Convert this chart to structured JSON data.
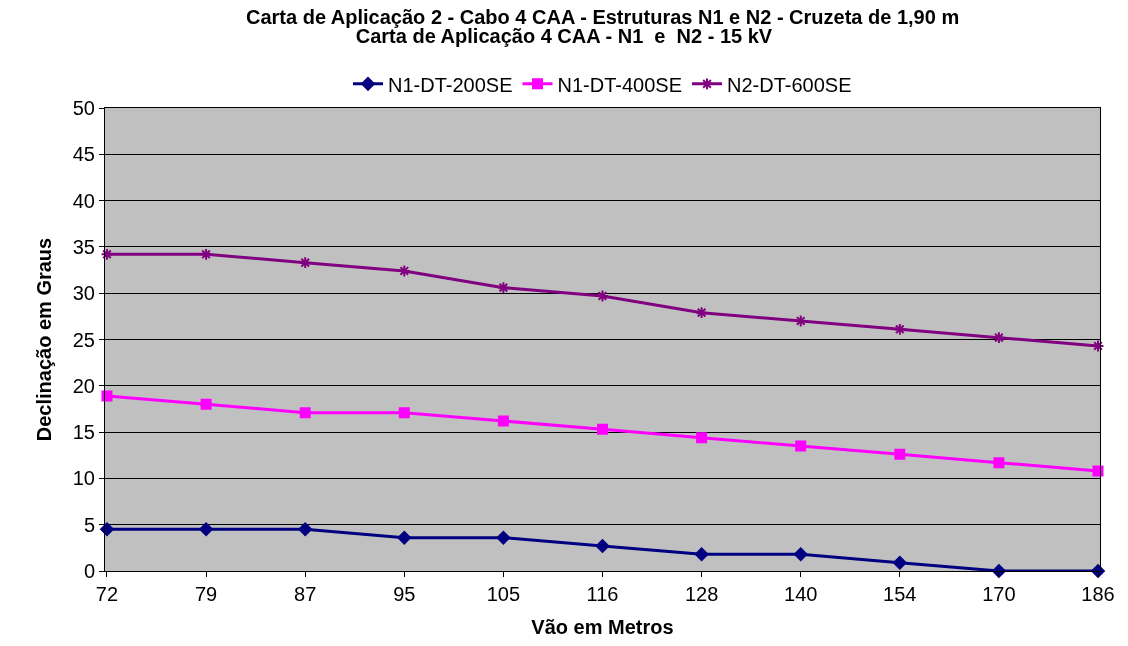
{
  "chart_data": {
    "type": "line",
    "title": "Carta de Aplicação 4 CAA - N1  e  N2 - 15 kV",
    "annotations": [
      "Carta de Aplicação 2 - Cabo 4 CAA - Estruturas N1 e N2 - Cruzeta de 1,90 m"
    ],
    "xlabel": "Vão em Metros",
    "ylabel": "Declinação em Graus",
    "categories": [
      "72",
      "79",
      "87",
      "95",
      "105",
      "116",
      "128",
      "140",
      "154",
      "170",
      "186"
    ],
    "series": [
      {
        "name": "N1-DT-200SE",
        "color": "#000080",
        "marker": "diamond",
        "values": [
          4.5,
          4.5,
          4.5,
          3.6,
          3.6,
          2.7,
          1.8,
          1.8,
          0.9,
          0,
          0
        ]
      },
      {
        "name": "N1-DT-400SE",
        "color": "#ff00ff",
        "marker": "square",
        "values": [
          18.9,
          18,
          17.1,
          17.1,
          16.2,
          15.3,
          14.4,
          13.5,
          12.6,
          11.7,
          10.8
        ]
      },
      {
        "name": "N2-DT-600SE",
        "color": "#800080",
        "marker": "cross",
        "values": [
          34.2,
          34.2,
          33.3,
          32.4,
          30.6,
          29.7,
          27.9,
          27,
          26.1,
          25.2,
          24.3
        ]
      }
    ],
    "ylim": [
      0,
      50
    ],
    "yticks": [
      0,
      5,
      10,
      15,
      20,
      25,
      30,
      35,
      40,
      45,
      50
    ],
    "grid": "y",
    "legend": "top",
    "line_style": "solid"
  }
}
